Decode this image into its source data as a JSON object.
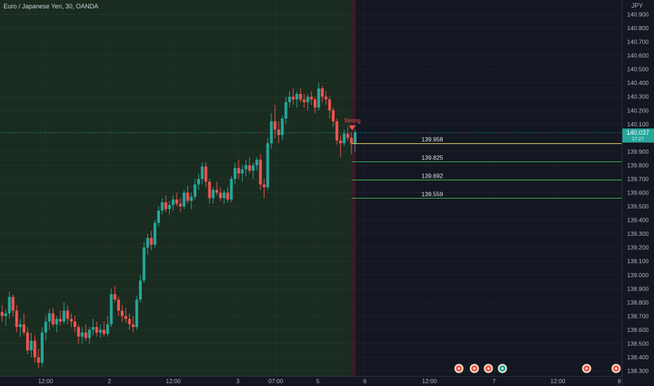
{
  "header": {
    "title": "Euro / Japanese Yen, 30, OANDA",
    "currency": "JPY"
  },
  "colors": {
    "background": "#131722",
    "history_background": "#1a2c1f",
    "up": "#26a69a",
    "down": "#ef5350",
    "level_primary": "#e8e05a",
    "level_secondary": "#3db54a",
    "divider": "#5a1d2a",
    "price_tag": "#26a69a"
  },
  "current_price": {
    "label": "140.037",
    "sub_label": "17:27",
    "value": 140.037
  },
  "chart_data": {
    "type": "candlestick",
    "y_axis": {
      "ticks": [
        "140.900",
        "140.800",
        "140.700",
        "140.600",
        "140.500",
        "140.400",
        "140.300",
        "140.200",
        "140.100",
        "140.000",
        "139.900",
        "139.800",
        "139.700",
        "139.600",
        "139.500",
        "139.400",
        "139.300",
        "139.200",
        "139.100",
        "139.000",
        "138.900",
        "138.800",
        "138.700",
        "138.600",
        "138.500",
        "138.400",
        "138.300"
      ],
      "range": [
        138.27,
        140.97
      ]
    },
    "x_axis": {
      "ticks": [
        "12:00",
        "2",
        "12:00",
        "3",
        "07:00",
        "5",
        "6",
        "12:00",
        "7",
        "12:00",
        "8"
      ]
    },
    "signal": {
      "label": "Strong",
      "price": 140.06
    },
    "levels": [
      {
        "label": "139.958",
        "value": 139.958,
        "color": "#e8e05a"
      },
      {
        "label": "139.825",
        "value": 139.825,
        "color": "#3db54a"
      },
      {
        "label": "139.692",
        "value": 139.692,
        "color": "#3db54a"
      },
      {
        "label": "139.559",
        "value": 139.559,
        "color": "#3db54a"
      }
    ],
    "candles": [
      [
        138.73,
        138.78,
        138.66,
        138.7
      ],
      [
        138.7,
        138.75,
        138.63,
        138.72
      ],
      [
        138.72,
        138.88,
        138.68,
        138.84
      ],
      [
        138.84,
        138.86,
        138.7,
        138.74
      ],
      [
        138.74,
        138.78,
        138.58,
        138.62
      ],
      [
        138.62,
        138.68,
        138.55,
        138.64
      ],
      [
        138.64,
        138.72,
        138.56,
        138.58
      ],
      [
        138.58,
        138.62,
        138.42,
        138.45
      ],
      [
        138.45,
        138.58,
        138.4,
        138.52
      ],
      [
        138.52,
        138.56,
        138.36,
        138.4
      ],
      [
        138.4,
        138.46,
        138.32,
        138.36
      ],
      [
        138.36,
        138.62,
        138.33,
        138.58
      ],
      [
        138.58,
        138.7,
        138.52,
        138.66
      ],
      [
        138.66,
        138.75,
        138.6,
        138.72
      ],
      [
        138.72,
        138.76,
        138.62,
        138.64
      ],
      [
        138.64,
        138.7,
        138.58,
        138.68
      ],
      [
        138.68,
        138.74,
        138.63,
        138.66
      ],
      [
        138.66,
        138.8,
        138.64,
        138.74
      ],
      [
        138.74,
        138.78,
        138.64,
        138.68
      ],
      [
        138.68,
        138.72,
        138.62,
        138.66
      ],
      [
        138.66,
        138.7,
        138.58,
        138.62
      ],
      [
        138.62,
        138.64,
        138.5,
        138.55
      ],
      [
        138.55,
        138.62,
        138.5,
        138.58
      ],
      [
        138.58,
        138.64,
        138.52,
        138.54
      ],
      [
        138.54,
        138.62,
        138.5,
        138.6
      ],
      [
        138.6,
        138.68,
        138.56,
        138.62
      ],
      [
        138.62,
        138.66,
        138.55,
        138.58
      ],
      [
        138.58,
        138.64,
        138.54,
        138.6
      ],
      [
        138.6,
        138.66,
        138.55,
        138.57
      ],
      [
        138.57,
        138.7,
        138.55,
        138.64
      ],
      [
        138.64,
        138.9,
        138.62,
        138.86
      ],
      [
        138.86,
        138.92,
        138.8,
        138.82
      ],
      [
        138.82,
        138.84,
        138.7,
        138.74
      ],
      [
        138.74,
        138.78,
        138.66,
        138.7
      ],
      [
        138.7,
        138.76,
        138.65,
        138.68
      ],
      [
        138.68,
        138.72,
        138.6,
        138.64
      ],
      [
        138.64,
        138.7,
        138.58,
        138.62
      ],
      [
        138.62,
        138.85,
        138.6,
        138.82
      ],
      [
        138.82,
        139.0,
        138.8,
        138.96
      ],
      [
        138.96,
        139.24,
        138.94,
        139.2
      ],
      [
        139.2,
        139.3,
        139.15,
        139.27
      ],
      [
        139.27,
        139.32,
        139.18,
        139.22
      ],
      [
        139.22,
        139.4,
        139.2,
        139.38
      ],
      [
        139.38,
        139.5,
        139.35,
        139.47
      ],
      [
        139.47,
        139.56,
        139.44,
        139.53
      ],
      [
        139.53,
        139.58,
        139.46,
        139.48
      ],
      [
        139.48,
        139.54,
        139.44,
        139.51
      ],
      [
        139.51,
        139.58,
        139.47,
        139.55
      ],
      [
        139.55,
        139.6,
        139.5,
        139.52
      ],
      [
        139.52,
        139.56,
        139.46,
        139.5
      ],
      [
        139.5,
        139.62,
        139.48,
        139.6
      ],
      [
        139.6,
        139.65,
        139.52,
        139.54
      ],
      [
        139.54,
        139.6,
        139.48,
        139.57
      ],
      [
        139.57,
        139.7,
        139.55,
        139.66
      ],
      [
        139.66,
        139.74,
        139.62,
        139.7
      ],
      [
        139.7,
        139.82,
        139.66,
        139.79
      ],
      [
        139.79,
        139.82,
        139.64,
        139.68
      ],
      [
        139.68,
        139.7,
        139.52,
        139.56
      ],
      [
        139.56,
        139.64,
        139.52,
        139.62
      ],
      [
        139.62,
        139.68,
        139.58,
        139.6
      ],
      [
        139.6,
        139.64,
        139.54,
        139.56
      ],
      [
        139.56,
        139.62,
        139.52,
        139.6
      ],
      [
        139.6,
        139.64,
        139.53,
        139.55
      ],
      [
        139.55,
        139.72,
        139.53,
        139.7
      ],
      [
        139.7,
        139.82,
        139.66,
        139.78
      ],
      [
        139.78,
        139.84,
        139.7,
        139.74
      ],
      [
        139.74,
        139.8,
        139.68,
        139.77
      ],
      [
        139.77,
        139.84,
        139.72,
        139.8
      ],
      [
        139.8,
        139.86,
        139.74,
        139.76
      ],
      [
        139.76,
        139.82,
        139.7,
        139.8
      ],
      [
        139.8,
        139.86,
        139.76,
        139.84
      ],
      [
        139.84,
        139.88,
        139.62,
        139.66
      ],
      [
        139.66,
        139.7,
        139.56,
        139.64
      ],
      [
        139.64,
        140.0,
        139.62,
        139.96
      ],
      [
        139.96,
        140.18,
        139.92,
        140.12
      ],
      [
        140.12,
        140.24,
        140.0,
        140.06
      ],
      [
        140.06,
        140.12,
        139.96,
        140.02
      ],
      [
        140.02,
        140.16,
        139.98,
        140.14
      ],
      [
        140.14,
        140.3,
        140.1,
        140.26
      ],
      [
        140.26,
        140.34,
        140.22,
        140.3
      ],
      [
        140.3,
        140.36,
        140.24,
        140.28
      ],
      [
        140.28,
        140.34,
        140.22,
        140.32
      ],
      [
        140.32,
        140.36,
        140.26,
        140.28
      ],
      [
        140.28,
        140.32,
        140.22,
        140.26
      ],
      [
        140.26,
        140.32,
        140.2,
        140.3
      ],
      [
        140.3,
        140.34,
        140.24,
        140.28
      ],
      [
        140.28,
        140.3,
        140.18,
        140.22
      ],
      [
        140.22,
        140.4,
        140.2,
        140.36
      ],
      [
        140.36,
        140.38,
        140.26,
        140.3
      ],
      [
        140.3,
        140.34,
        140.24,
        140.28
      ],
      [
        140.28,
        140.3,
        140.14,
        140.2
      ],
      [
        140.2,
        140.22,
        140.08,
        140.12
      ],
      [
        140.12,
        140.14,
        139.95,
        139.98
      ],
      [
        139.98,
        140.02,
        139.86,
        139.96
      ],
      [
        139.96,
        140.06,
        139.94,
        140.03
      ],
      [
        140.03,
        140.08,
        139.98,
        140.0
      ],
      [
        140.0,
        140.04,
        139.88,
        139.96
      ],
      [
        139.96,
        140.06,
        139.9,
        140.04
      ]
    ]
  },
  "events": [
    {
      "icon": "flag-icon",
      "color": "#ef5350"
    },
    {
      "icon": "flag-icon",
      "color": "#ef5350"
    },
    {
      "icon": "flag-icon",
      "color": "#ef5350"
    },
    {
      "icon": "flag-icon",
      "color": "#26a69a"
    },
    {
      "icon": "flag-icon",
      "color": "#ef5350"
    },
    {
      "icon": "flag-icon",
      "color": "#ef5350"
    }
  ]
}
